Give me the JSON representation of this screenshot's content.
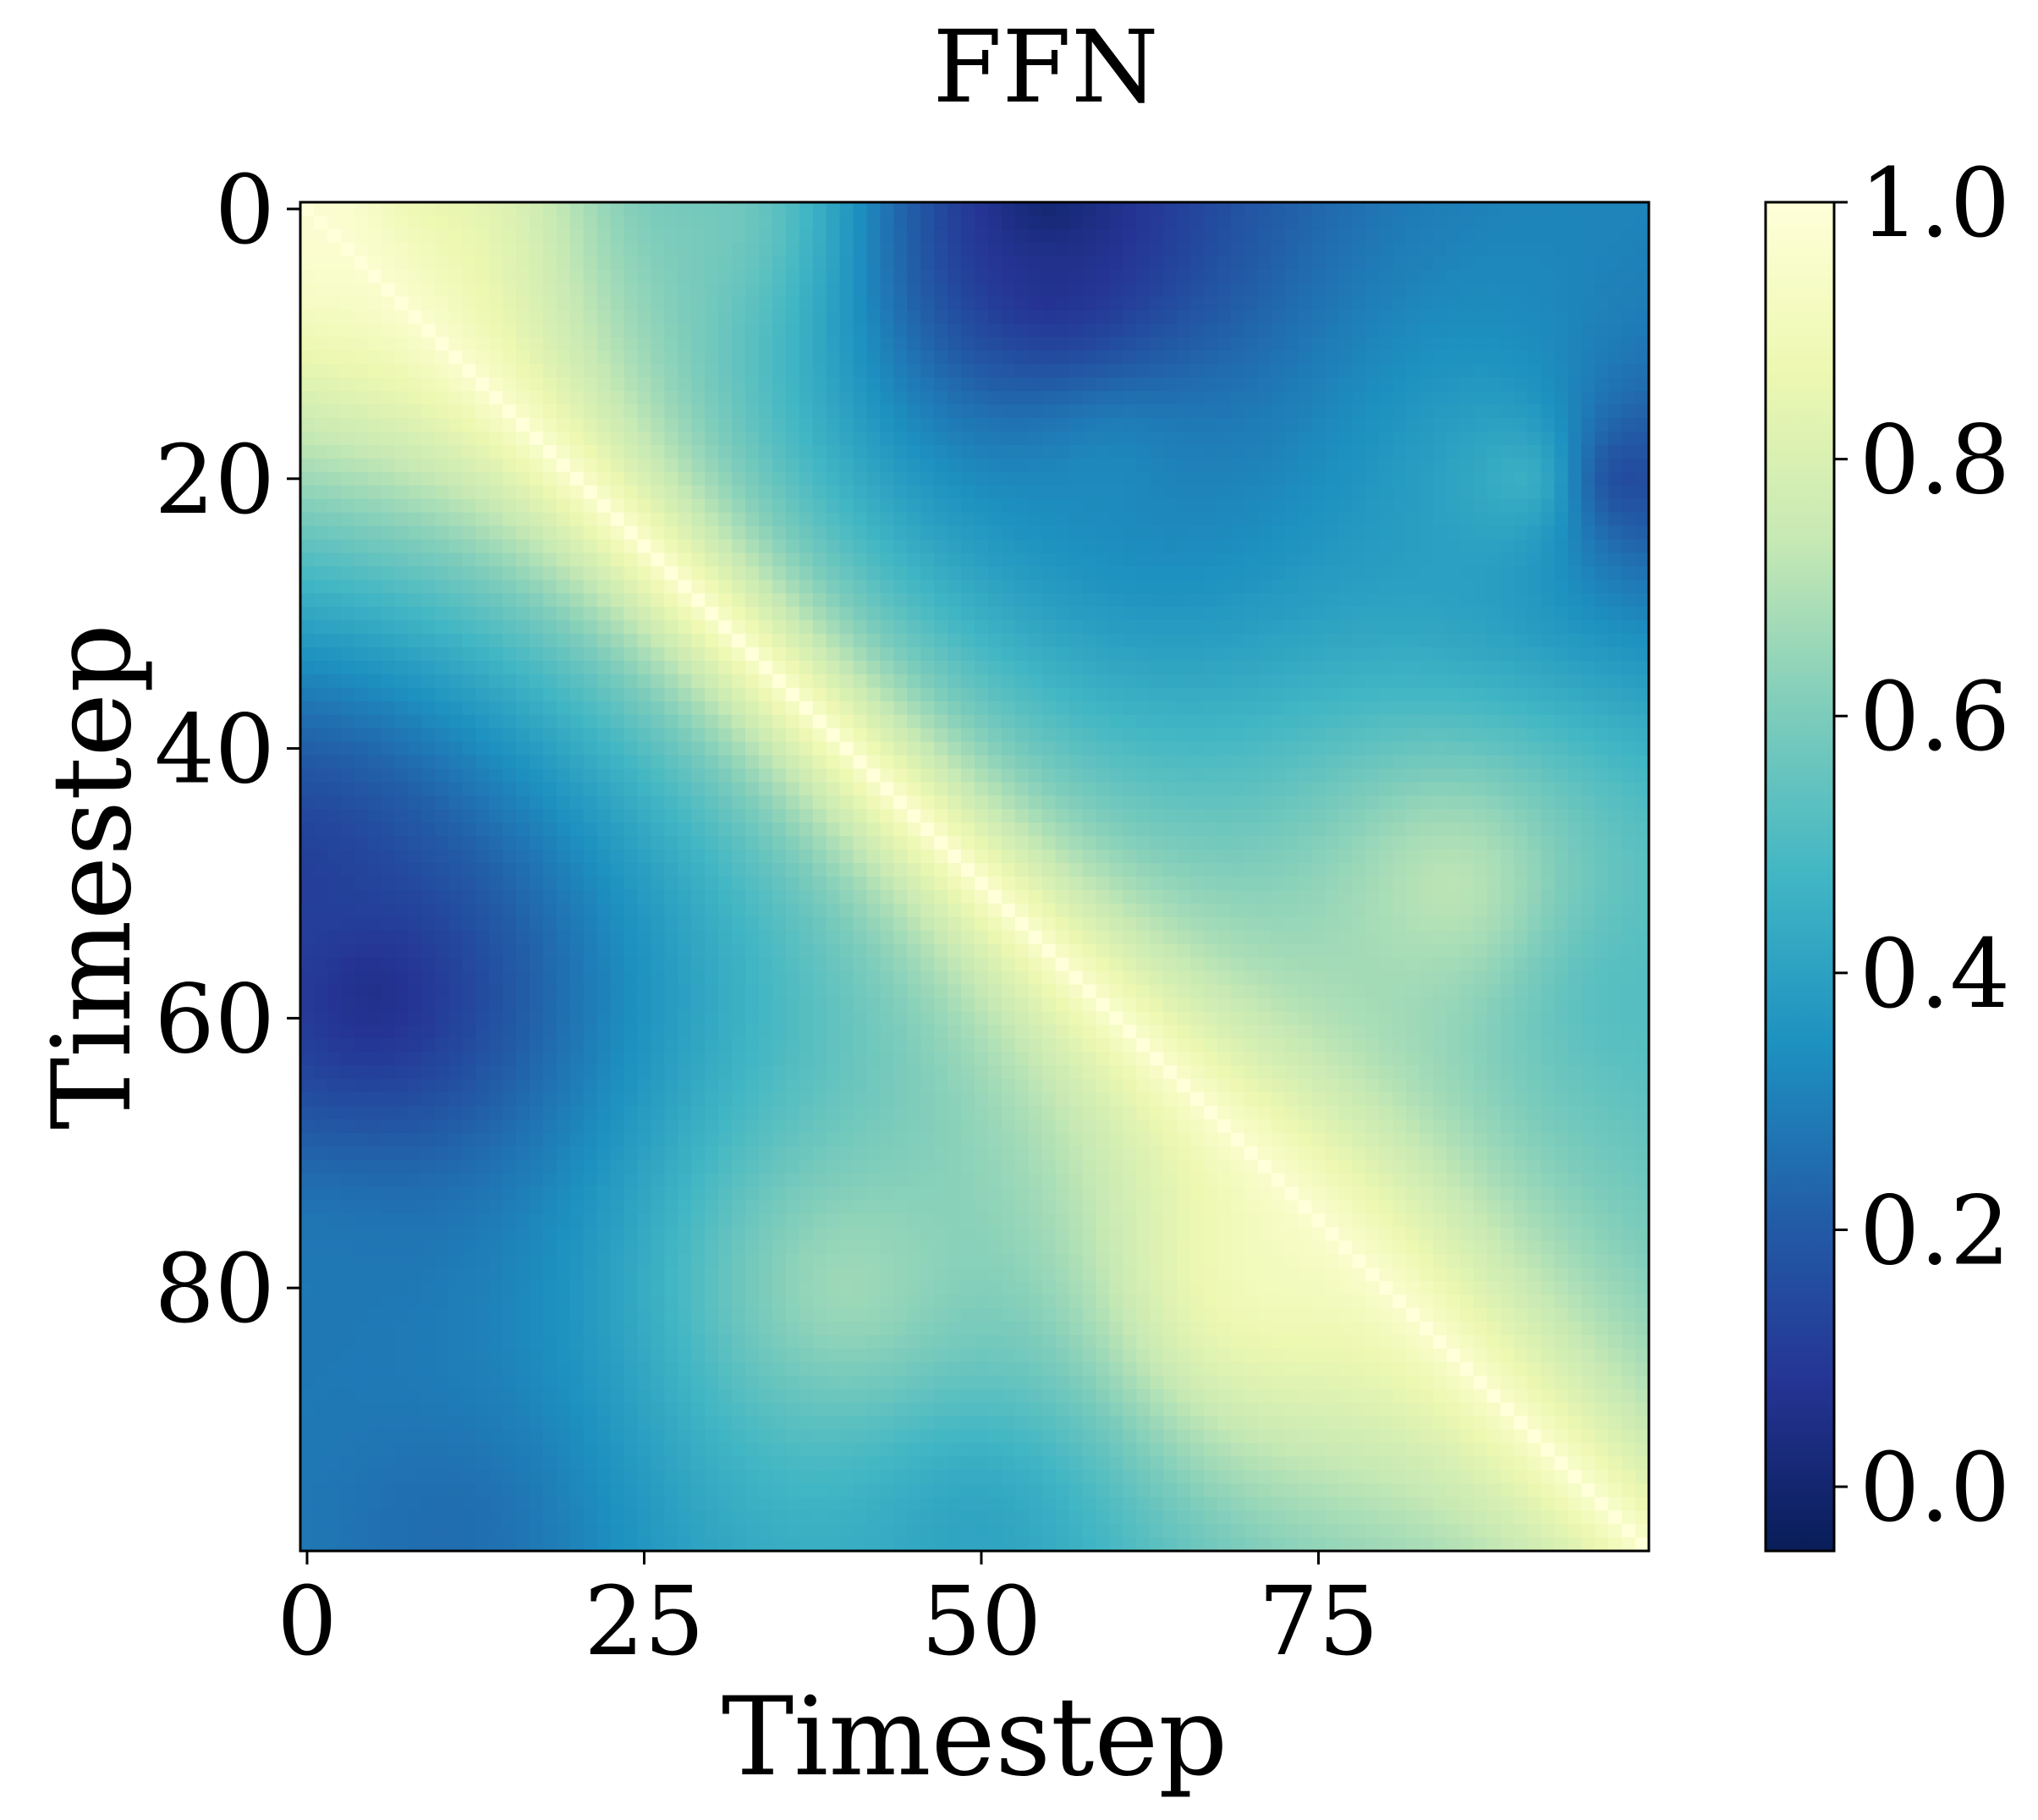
{
  "chart_data": {
    "type": "heatmap",
    "title": "FFN",
    "xlabel": "Timestep",
    "ylabel": "Timestep",
    "grid_size": 100,
    "x_ticks": [
      0,
      25,
      50,
      75
    ],
    "y_ticks": [
      0,
      20,
      40,
      60,
      80
    ],
    "x_tick_labels": [
      "0",
      "25",
      "50",
      "75"
    ],
    "y_tick_labels": [
      "0",
      "20",
      "40",
      "60",
      "80"
    ],
    "colorbar": {
      "range": [
        -0.05,
        1.0
      ],
      "ticks": [
        0.0,
        0.2,
        0.4,
        0.6,
        0.8,
        1.0
      ],
      "tick_labels": [
        "0.0",
        "0.2",
        "0.4",
        "0.6",
        "0.8",
        "1.0"
      ],
      "colormap": "YlGnBu_r"
    },
    "colormap_stops": [
      {
        "v": 0.0,
        "color": "#081d58"
      },
      {
        "v": 0.125,
        "color": "#253494"
      },
      {
        "v": 0.25,
        "color": "#225ea8"
      },
      {
        "v": 0.375,
        "color": "#1d91c0"
      },
      {
        "v": 0.5,
        "color": "#41b6c4"
      },
      {
        "v": 0.625,
        "color": "#7fcdbb"
      },
      {
        "v": 0.75,
        "color": "#c7e9b4"
      },
      {
        "v": 0.875,
        "color": "#edf8b1"
      },
      {
        "v": 1.0,
        "color": "#ffffd9"
      }
    ],
    "pattern": {
      "description_values": "similarity between timesteps; 1.0 on the diagonal",
      "diagonal_value": 1.0,
      "anchors": [
        {
          "i": 0,
          "j": 0,
          "value": 1.0
        },
        {
          "i": 0,
          "j": 10,
          "value": 0.78
        },
        {
          "i": 0,
          "j": 30,
          "value": 0.55
        },
        {
          "i": 0,
          "j": 55,
          "value": 0.0
        },
        {
          "i": 5,
          "j": 55,
          "value": 0.05
        },
        {
          "i": 20,
          "j": 60,
          "value": 0.3
        },
        {
          "i": 20,
          "j": 90,
          "value": 0.45
        },
        {
          "i": 50,
          "j": 0,
          "value": 0.1
        },
        {
          "i": 58,
          "j": 5,
          "value": 0.05
        },
        {
          "i": 50,
          "j": 85,
          "value": 0.7
        },
        {
          "i": 80,
          "j": 0,
          "value": 0.28
        },
        {
          "i": 80,
          "j": 40,
          "value": 0.65
        },
        {
          "i": 80,
          "j": 70,
          "value": 0.85
        },
        {
          "i": 98,
          "j": 10,
          "value": 0.25
        },
        {
          "i": 98,
          "j": 50,
          "value": 0.4
        },
        {
          "i": 20,
          "j": 98,
          "value": 0.15
        },
        {
          "i": 60,
          "j": 98,
          "value": 0.5
        }
      ]
    }
  }
}
